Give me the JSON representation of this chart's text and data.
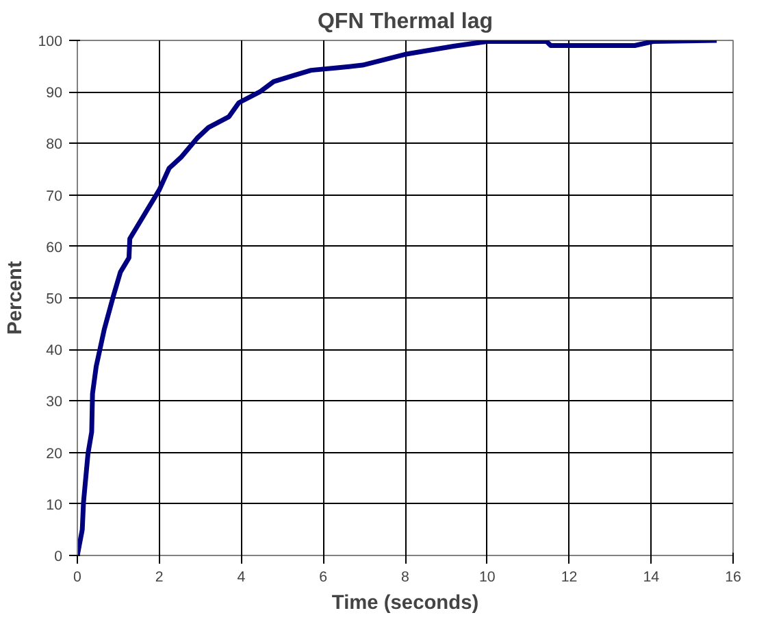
{
  "chart_data": {
    "type": "line",
    "title": "QFN Thermal lag",
    "xlabel": "Time (seconds)",
    "ylabel": "Percent",
    "xlim": [
      0,
      16
    ],
    "xticks": [
      0,
      2,
      4,
      6,
      8,
      10,
      12,
      14,
      16
    ],
    "ylim": [
      0,
      100
    ],
    "yticks": [
      0,
      10,
      20,
      30,
      40,
      50,
      60,
      70,
      80,
      90,
      100
    ],
    "grid": true,
    "marker": "none",
    "line_style": "solid",
    "series": [
      {
        "color": "#000080",
        "x": [
          0,
          0.12,
          0.15,
          0.26,
          0.35,
          0.37,
          0.46,
          0.66,
          0.88,
          1.05,
          1.26,
          1.28,
          1.56,
          2.0,
          2.24,
          2.53,
          2.92,
          3.2,
          3.7,
          3.94,
          4.45,
          4.79,
          5.24,
          5.7,
          6.38,
          6.96,
          8,
          9.2,
          10,
          11.45,
          11.55,
          13.6,
          14.05,
          15.6
        ],
        "values": [
          0,
          5,
          10.3,
          19.8,
          24,
          31.4,
          36.7,
          44,
          50.4,
          55,
          57.8,
          61.5,
          65.2,
          71,
          75.2,
          77.3,
          81,
          83.1,
          85.2,
          87.9,
          90,
          92,
          93.1,
          94.2,
          94.7,
          95.2,
          97.3,
          98.9,
          99.8,
          99.8,
          99,
          99,
          99.8,
          100
        ]
      }
    ]
  }
}
